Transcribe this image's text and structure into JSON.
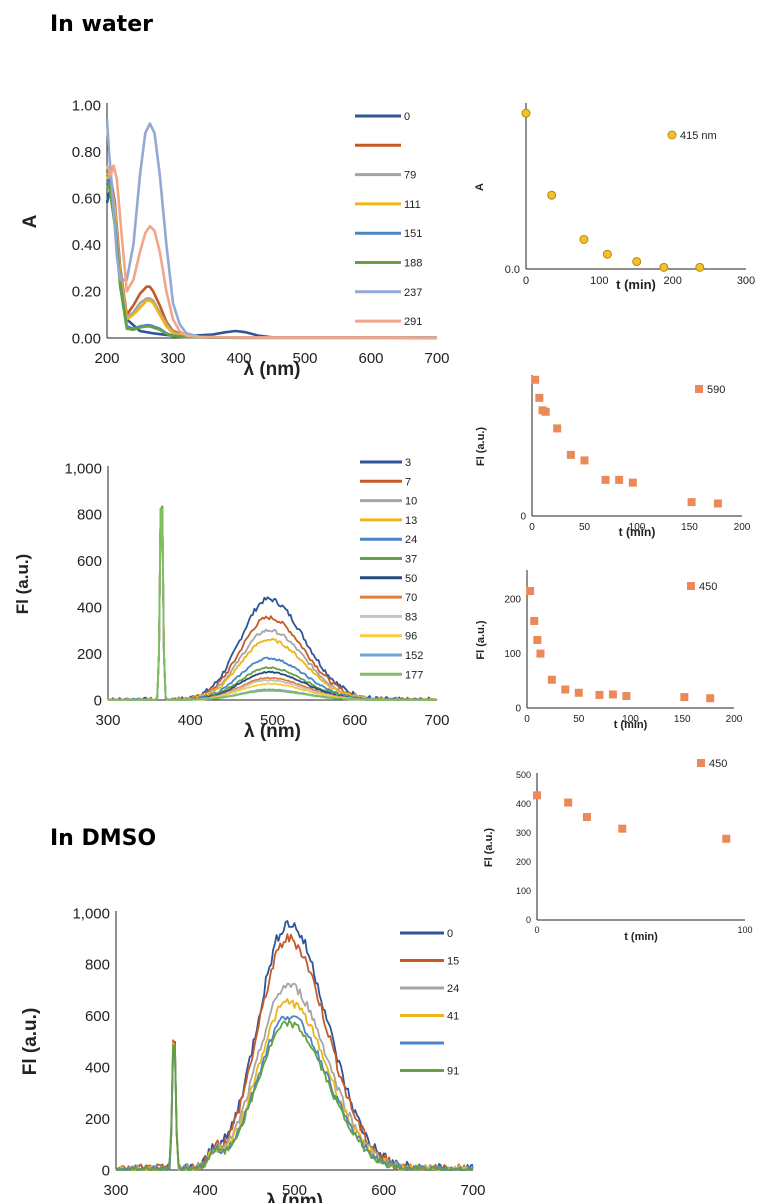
{
  "sections": {
    "water_title": "In water",
    "dmso_title": "In DMSO"
  },
  "chart_data": [
    {
      "id": "abs",
      "type": "line",
      "xlabel": "λ (nm)",
      "ylabel": "A",
      "xlim": [
        200,
        700
      ],
      "ylim": [
        0,
        1
      ],
      "xticks": [
        200,
        300,
        400,
        500,
        600,
        700
      ],
      "yticks": [
        0,
        0.2,
        0.4,
        0.6,
        0.8,
        1.0
      ],
      "ytick_labels": [
        "0.00",
        "0.20",
        "0.40",
        "0.60",
        "0.80",
        "1.00"
      ],
      "legend": [
        "0",
        "",
        "79",
        "111",
        "151",
        "188",
        "237",
        "291"
      ],
      "legend_position": "right",
      "grid": false,
      "series": [
        {
          "name": "0",
          "color": "#2e5597",
          "x": [
            200,
            203,
            206,
            210,
            220,
            230,
            250,
            270,
            300,
            330,
            360,
            380,
            395,
            410,
            430,
            450,
            500,
            600,
            700
          ],
          "y": [
            0.58,
            0.62,
            0.64,
            0.6,
            0.3,
            0.08,
            0.03,
            0.02,
            0.01,
            0.01,
            0.015,
            0.025,
            0.03,
            0.025,
            0.01,
            0.003,
            0.002,
            0.002,
            0.002
          ]
        },
        {
          "name": "",
          "color": "#c55a28",
          "x": [
            200,
            203,
            206,
            212,
            220,
            230,
            240,
            250,
            260,
            265,
            270,
            280,
            290,
            300,
            320,
            350,
            400,
            700
          ],
          "y": [
            0.72,
            0.73,
            0.68,
            0.58,
            0.3,
            0.1,
            0.14,
            0.19,
            0.22,
            0.22,
            0.2,
            0.14,
            0.07,
            0.03,
            0.01,
            0.003,
            0.002,
            0.001
          ]
        },
        {
          "name": "79",
          "color": "#a5a5a5",
          "x": [
            200,
            203,
            206,
            212,
            220,
            230,
            240,
            250,
            260,
            265,
            270,
            280,
            290,
            300,
            320,
            350,
            400,
            700
          ],
          "y": [
            0.7,
            0.71,
            0.66,
            0.56,
            0.28,
            0.09,
            0.11,
            0.15,
            0.17,
            0.17,
            0.16,
            0.11,
            0.06,
            0.025,
            0.008,
            0.003,
            0.002,
            0.001
          ]
        },
        {
          "name": "111",
          "color": "#ecb61a",
          "x": [
            200,
            203,
            206,
            212,
            220,
            230,
            240,
            250,
            260,
            265,
            270,
            280,
            290,
            300,
            320,
            350,
            400,
            700
          ],
          "y": [
            0.68,
            0.7,
            0.64,
            0.54,
            0.27,
            0.08,
            0.1,
            0.13,
            0.16,
            0.16,
            0.15,
            0.1,
            0.05,
            0.02,
            0.007,
            0.003,
            0.002,
            0.001
          ]
        },
        {
          "name": "151",
          "color": "#4a86c4",
          "x": [
            200,
            203,
            206,
            212,
            220,
            230,
            240,
            250,
            260,
            265,
            270,
            280,
            290,
            300,
            320,
            350,
            400,
            700
          ],
          "y": [
            0.66,
            0.68,
            0.62,
            0.5,
            0.24,
            0.05,
            0.04,
            0.05,
            0.055,
            0.055,
            0.05,
            0.04,
            0.02,
            0.01,
            0.004,
            0.002,
            0.001,
            0.001
          ]
        },
        {
          "name": "188",
          "color": "#63a046",
          "x": [
            200,
            203,
            206,
            212,
            220,
            230,
            240,
            250,
            260,
            265,
            270,
            280,
            290,
            300,
            320,
            350,
            400,
            700
          ],
          "y": [
            0.64,
            0.66,
            0.6,
            0.48,
            0.22,
            0.04,
            0.035,
            0.045,
            0.05,
            0.05,
            0.045,
            0.035,
            0.018,
            0.008,
            0.003,
            0.002,
            0.001,
            0.001
          ]
        },
        {
          "name": "237",
          "color": "#94a8d6",
          "x": [
            200,
            203,
            206,
            210,
            215,
            220,
            230,
            240,
            250,
            258,
            265,
            272,
            280,
            290,
            300,
            310,
            320,
            340,
            400,
            700
          ],
          "y": [
            0.94,
            0.8,
            0.7,
            0.55,
            0.35,
            0.25,
            0.25,
            0.4,
            0.7,
            0.88,
            0.92,
            0.88,
            0.7,
            0.4,
            0.15,
            0.06,
            0.02,
            0.005,
            0.002,
            0.001
          ]
        },
        {
          "name": "291",
          "color": "#f2a58a",
          "x": [
            200,
            203,
            206,
            210,
            215,
            222,
            230,
            240,
            250,
            258,
            265,
            272,
            280,
            290,
            300,
            310,
            320,
            340,
            400,
            700
          ],
          "y": [
            0.74,
            0.72,
            0.7,
            0.74,
            0.68,
            0.45,
            0.2,
            0.25,
            0.37,
            0.45,
            0.48,
            0.46,
            0.37,
            0.2,
            0.08,
            0.03,
            0.01,
            0.004,
            0.002,
            0.001
          ]
        }
      ]
    },
    {
      "id": "abs_kin",
      "type": "scatter",
      "xlabel": "t (min)",
      "ylabel": "A",
      "xlim": [
        0,
        300
      ],
      "ylim": [
        0,
        1
      ],
      "xticks": [
        0,
        100,
        200,
        300
      ],
      "yticks": [
        0
      ],
      "ytick_labels": [
        "0.0"
      ],
      "legend": [
        "415 nm"
      ],
      "legend_position": "top-right",
      "marker": "circle",
      "color": "#f2c12e",
      "stroke": "#b88a00",
      "x": [
        0,
        35,
        79,
        111,
        151,
        188,
        237
      ],
      "y": [
        0.95,
        0.45,
        0.18,
        0.09,
        0.045,
        0.01,
        0.01
      ]
    },
    {
      "id": "fl_water",
      "type": "line",
      "xlabel": "λ (nm)",
      "ylabel": "Fl (a.u.)",
      "xlim": [
        300,
        700
      ],
      "ylim": [
        0,
        1000
      ],
      "xticks": [
        300,
        400,
        500,
        600,
        700
      ],
      "yticks": [
        0,
        200,
        400,
        600,
        800,
        1000
      ],
      "ytick_labels": [
        "0",
        "200",
        "400",
        "600",
        "800",
        "1,000"
      ],
      "legend": [
        "3",
        "7",
        "10",
        "13",
        "24",
        "37",
        "50",
        "70",
        "83",
        "96",
        "152",
        "177"
      ],
      "legend_position": "right",
      "grid": false,
      "peak_center": 495,
      "series": [
        {
          "name": "3",
          "color": "#2e5597",
          "peak": 435
        },
        {
          "name": "7",
          "color": "#c55a28",
          "peak": 355
        },
        {
          "name": "10",
          "color": "#a5a5a5",
          "peak": 300
        },
        {
          "name": "13",
          "color": "#ecb61a",
          "peak": 260
        },
        {
          "name": "24",
          "color": "#4a86c4",
          "peak": 180
        },
        {
          "name": "37",
          "color": "#63a046",
          "peak": 140
        },
        {
          "name": "50",
          "color": "#244a82",
          "peak": 120
        },
        {
          "name": "70",
          "color": "#e27d3e",
          "peak": 95
        },
        {
          "name": "83",
          "color": "#c2c2c2",
          "peak": 85
        },
        {
          "name": "96",
          "color": "#f7cd38",
          "peak": 70
        },
        {
          "name": "152",
          "color": "#6fa6dc",
          "peak": 45
        },
        {
          "name": "177",
          "color": "#7fbe5f",
          "peak": 40
        }
      ]
    },
    {
      "id": "fl590_kin",
      "type": "scatter",
      "xlabel": "t (min)",
      "ylabel": "Fl (a.u.)",
      "xlim": [
        0,
        200
      ],
      "ylim": [
        0,
        1
      ],
      "xticks": [
        0,
        50,
        100,
        150,
        200
      ],
      "yticks": [
        0
      ],
      "ytick_labels": [
        "0"
      ],
      "legend": [
        "590"
      ],
      "legend_position": "top-right",
      "marker": "square",
      "color": "#e98a57",
      "x": [
        3,
        7,
        10,
        13,
        24,
        37,
        50,
        70,
        83,
        96,
        152,
        177
      ],
      "y": [
        0.98,
        0.85,
        0.76,
        0.75,
        0.63,
        0.44,
        0.4,
        0.26,
        0.26,
        0.24,
        0.1,
        0.09
      ]
    },
    {
      "id": "fl450_kin",
      "type": "scatter",
      "xlabel": "t (min)",
      "ylabel": "Fl (a.u.)",
      "xlim": [
        0,
        200
      ],
      "ylim": [
        0,
        250
      ],
      "xticks": [
        0,
        50,
        100,
        150,
        200
      ],
      "yticks": [
        0,
        100,
        200
      ],
      "ytick_labels": [
        "0",
        "100",
        "200"
      ],
      "legend": [
        "450"
      ],
      "legend_position": "top-right",
      "marker": "square",
      "color": "#e98a57",
      "x": [
        3,
        7,
        10,
        13,
        24,
        37,
        50,
        70,
        83,
        96,
        152,
        177
      ],
      "y": [
        215,
        160,
        125,
        100,
        52,
        34,
        28,
        24,
        25,
        22,
        20,
        18
      ]
    },
    {
      "id": "fl_dmso",
      "type": "line",
      "xlabel": "λ (nm)",
      "ylabel": "Fl (a.u.)",
      "xlim": [
        300,
        700
      ],
      "ylim": [
        0,
        1000
      ],
      "xticks": [
        300,
        400,
        500,
        600,
        700
      ],
      "yticks": [
        0,
        200,
        400,
        600,
        800,
        1000
      ],
      "ytick_labels": [
        "0",
        "200",
        "400",
        "600",
        "800",
        "1,000"
      ],
      "legend": [
        "0",
        "15",
        "24",
        "41",
        "",
        "91"
      ],
      "legend_position": "right",
      "grid": false,
      "peak_center": 493,
      "series": [
        {
          "name": "0",
          "color": "#2e5597",
          "peak": 960
        },
        {
          "name": "15",
          "color": "#c55a28",
          "peak": 900
        },
        {
          "name": "24",
          "color": "#a5a5a5",
          "peak": 720
        },
        {
          "name": "41",
          "color": "#ecb61a",
          "peak": 655
        },
        {
          "name": "",
          "color": "#4a86c4",
          "peak": 600
        },
        {
          "name": "91",
          "color": "#63a046",
          "peak": 570
        }
      ]
    },
    {
      "id": "dmso_kin",
      "type": "scatter",
      "xlabel": "t (min)",
      "ylabel": "Fl (a.u.)",
      "xlim": [
        0,
        100
      ],
      "ylim": [
        0,
        500
      ],
      "xticks": [
        0,
        100
      ],
      "yticks": [
        0,
        100,
        200,
        300,
        400,
        500
      ],
      "ytick_labels": [
        "0",
        "100",
        "200",
        "300",
        "400",
        "500"
      ],
      "legend": [
        "450"
      ],
      "legend_position": "top-right",
      "marker": "square",
      "color": "#e98a57",
      "x": [
        0,
        15,
        24,
        41,
        91
      ],
      "y": [
        430,
        405,
        355,
        315,
        280
      ]
    }
  ]
}
